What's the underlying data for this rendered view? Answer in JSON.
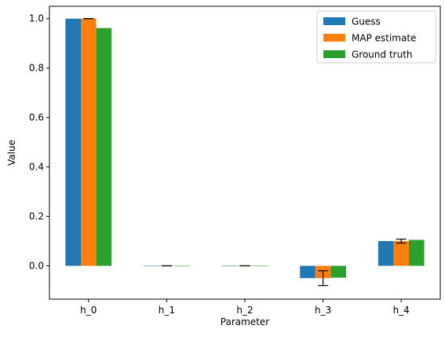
{
  "chart_data": {
    "type": "bar",
    "title": "",
    "xlabel": "Parameter",
    "ylabel": "Value",
    "categories": [
      "h_0",
      "h_1",
      "h_2",
      "h_3",
      "h_4"
    ],
    "ylim": [
      -0.135,
      1.05
    ],
    "yticks": [
      "0.0",
      "0.2",
      "0.4",
      "0.6",
      "0.8",
      "1.0"
    ],
    "ytick_values": [
      0.0,
      0.2,
      0.4,
      0.6,
      0.8,
      1.0
    ],
    "legend_position": "top-right",
    "grid": false,
    "series": [
      {
        "name": "Guess",
        "color": "#1f77b4",
        "values": [
          1.0,
          0.0,
          0.0,
          -0.05,
          0.1
        ]
      },
      {
        "name": "MAP estimate",
        "color": "#ff7f0e",
        "values": [
          1.0,
          0.0,
          0.0,
          -0.05,
          0.1
        ],
        "error": [
          0.0,
          0.0,
          0.0,
          0.03,
          0.008
        ]
      },
      {
        "name": "Ground truth",
        "color": "#2ca02c",
        "values": [
          0.962,
          0.0,
          0.0,
          -0.048,
          0.105
        ]
      }
    ]
  }
}
